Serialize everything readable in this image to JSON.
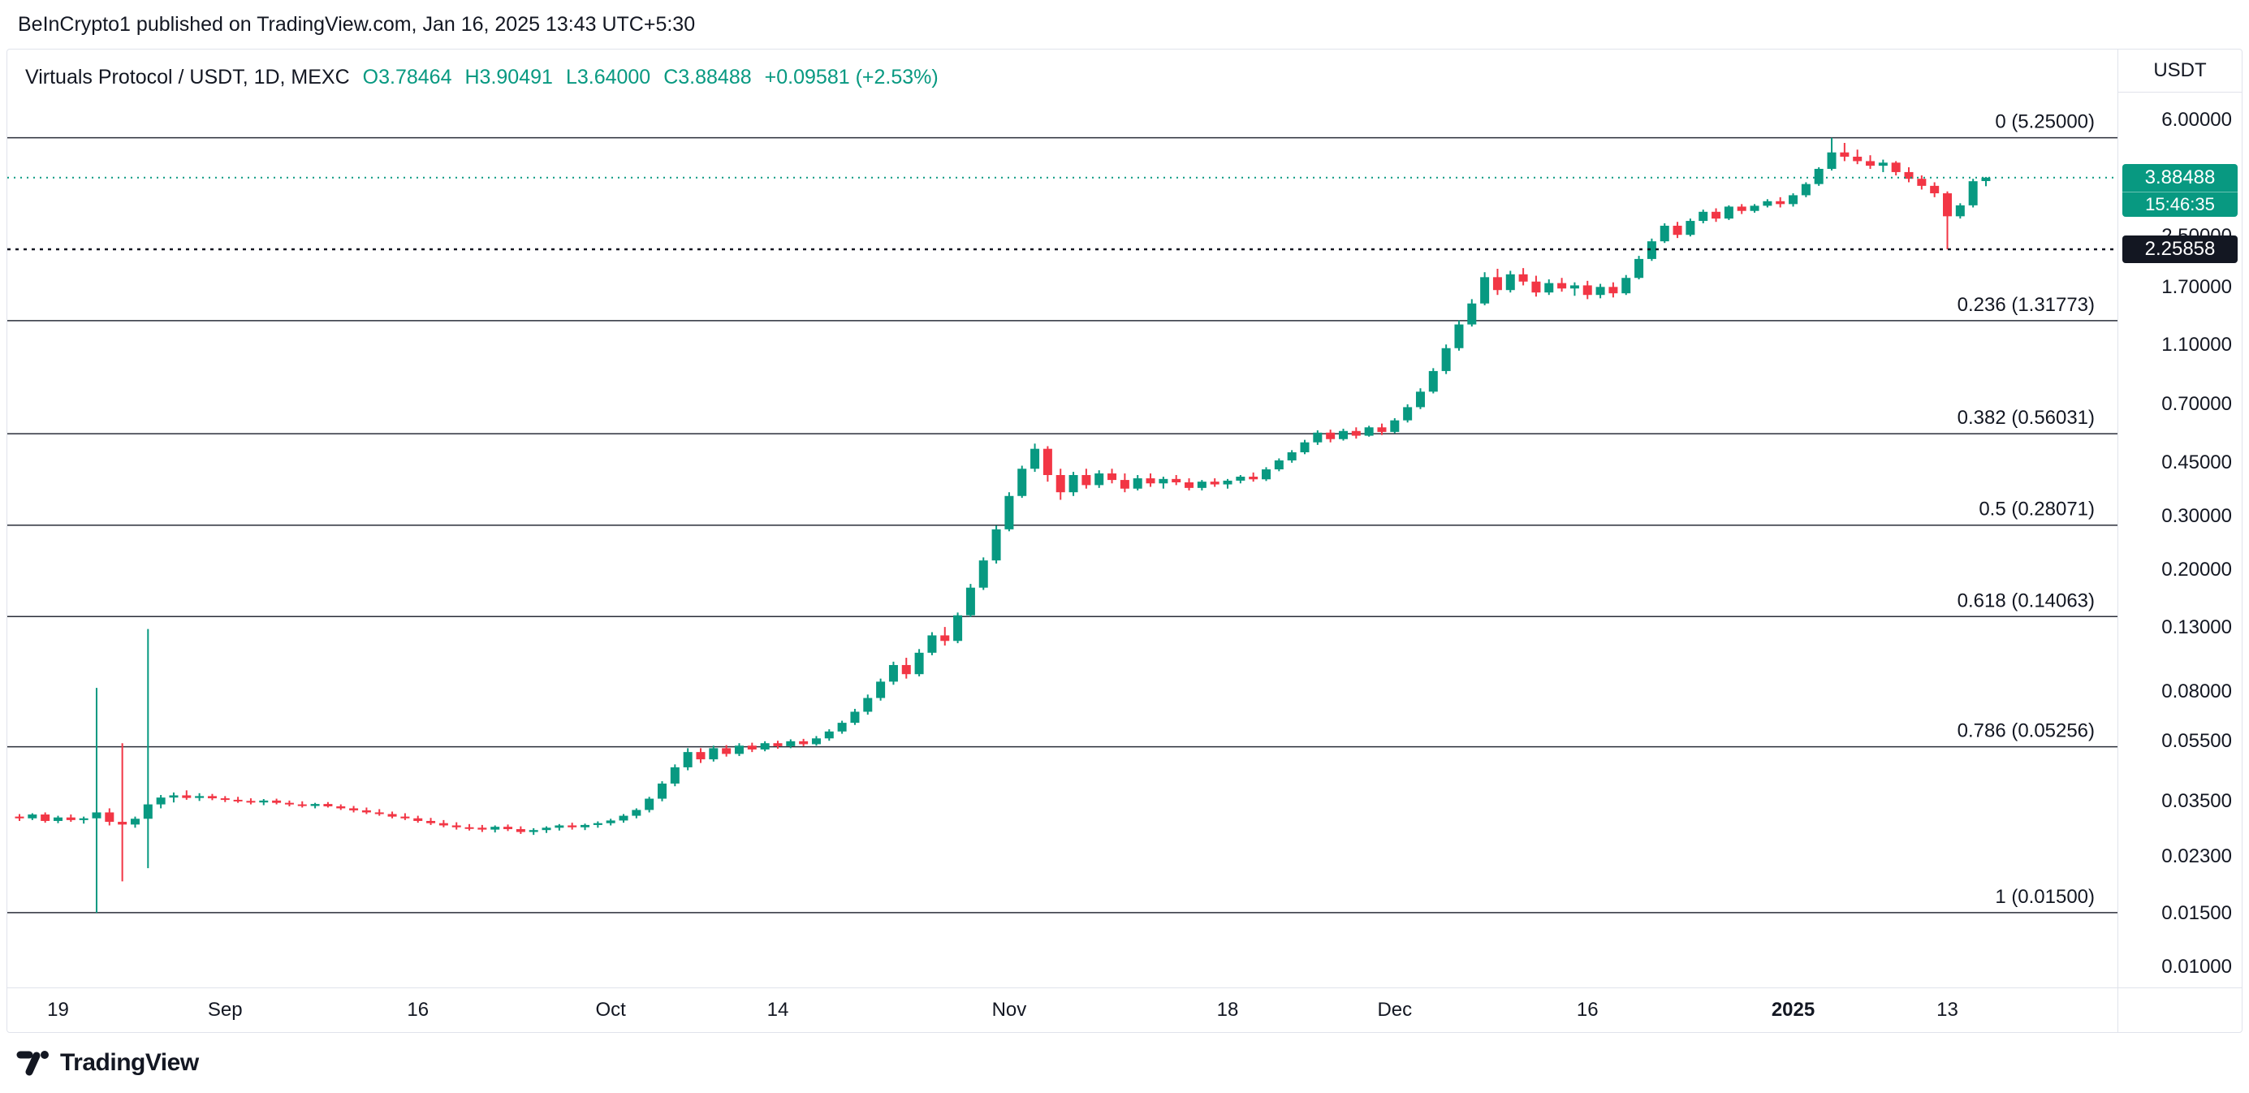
{
  "header": {
    "attribution": "BeInCrypto1 published on TradingView.com, Jan 16, 2025 13:43 UTC+5:30"
  },
  "legend": {
    "symbol": "Virtuals Protocol / USDT, 1D, MEXC",
    "o": "O3.78464",
    "h": "H3.90491",
    "l": "L3.64000",
    "c": "C3.88488",
    "change": "+0.09581 (+2.53%)"
  },
  "price_scale": {
    "currency": "USDT",
    "ticks": [
      {
        "label": "6.00000",
        "price": 6.0
      },
      {
        "label": "2.50000",
        "price": 2.5
      },
      {
        "label": "1.70000",
        "price": 1.7
      },
      {
        "label": "1.10000",
        "price": 1.1
      },
      {
        "label": "0.70000",
        "price": 0.7
      },
      {
        "label": "0.45000",
        "price": 0.45
      },
      {
        "label": "0.30000",
        "price": 0.3
      },
      {
        "label": "0.20000",
        "price": 0.2
      },
      {
        "label": "0.13000",
        "price": 0.13
      },
      {
        "label": "0.08000",
        "price": 0.08
      },
      {
        "label": "0.05500",
        "price": 0.055
      },
      {
        "label": "0.03500",
        "price": 0.035
      },
      {
        "label": "0.02300",
        "price": 0.023
      },
      {
        "label": "0.01500",
        "price": 0.015
      },
      {
        "label": "0.01000",
        "price": 0.01
      }
    ],
    "last_badge": {
      "value": "3.88488",
      "countdown": "15:46:35",
      "color": "#089981"
    },
    "level_badge": {
      "value": "2.25858",
      "color": "#131722"
    }
  },
  "time_scale": {
    "labels": [
      {
        "text": "19",
        "index": 3,
        "bold": false
      },
      {
        "text": "Sep",
        "index": 16,
        "bold": false
      },
      {
        "text": "16",
        "index": 31,
        "bold": false
      },
      {
        "text": "Oct",
        "index": 46,
        "bold": false
      },
      {
        "text": "14",
        "index": 59,
        "bold": false
      },
      {
        "text": "Nov",
        "index": 77,
        "bold": false
      },
      {
        "text": "18",
        "index": 94,
        "bold": false
      },
      {
        "text": "Dec",
        "index": 107,
        "bold": false
      },
      {
        "text": "16",
        "index": 122,
        "bold": false
      },
      {
        "text": "2025",
        "index": 138,
        "bold": true
      },
      {
        "text": "13",
        "index": 150,
        "bold": false
      }
    ]
  },
  "footer": {
    "brand": "TradingView"
  },
  "chart_data": {
    "type": "candlestick",
    "title": "Virtuals Protocol / USDT, 1D, MEXC",
    "interval": "1D",
    "exchange": "MEXC",
    "up_color": "#089981",
    "down_color": "#F23645",
    "y_axis": {
      "scale": "log",
      "range": [
        0.009,
        6.8
      ]
    },
    "last_values": {
      "open": 3.78464,
      "high": 3.90491,
      "low": 3.64,
      "close": 3.88488,
      "change": "+0.09581",
      "change_pct": "+2.53%"
    },
    "fib_levels": [
      {
        "label": "0 (5.25000)",
        "ratio": 0,
        "price": 5.25
      },
      {
        "label": "0.236 (1.31773)",
        "ratio": 0.236,
        "price": 1.31773
      },
      {
        "label": "0.382 (0.56031)",
        "ratio": 0.382,
        "price": 0.56031
      },
      {
        "label": "0.5 (0.28071)",
        "ratio": 0.5,
        "price": 0.28071
      },
      {
        "label": "0.618 (0.14063)",
        "ratio": 0.618,
        "price": 0.14063
      },
      {
        "label": "0.786 (0.05256)",
        "ratio": 0.786,
        "price": 0.05256
      },
      {
        "label": "1 (0.01500)",
        "ratio": 1,
        "price": 0.015
      }
    ],
    "price_lines": [
      {
        "name": "last-price-line",
        "price": 3.88488,
        "color": "#089981",
        "style": "dotted",
        "dash": "2 6",
        "width": 2
      },
      {
        "name": "level-line",
        "price": 2.25858,
        "color": "#131722",
        "style": "dotted",
        "dash": "4 6",
        "width": 2.5
      }
    ],
    "candles": [
      [
        0.031,
        0.0316,
        0.03,
        0.0306
      ],
      [
        0.0306,
        0.0318,
        0.0302,
        0.0315
      ],
      [
        0.0315,
        0.032,
        0.0296,
        0.03
      ],
      [
        0.03,
        0.0312,
        0.0295,
        0.0308
      ],
      [
        0.0308,
        0.0315,
        0.0298,
        0.0302
      ],
      [
        0.0302,
        0.031,
        0.0294,
        0.0306
      ],
      [
        0.0306,
        0.082,
        0.015,
        0.032
      ],
      [
        0.032,
        0.033,
        0.029,
        0.0298
      ],
      [
        0.0298,
        0.054,
        0.019,
        0.0292
      ],
      [
        0.0292,
        0.031,
        0.0285,
        0.0305
      ],
      [
        0.0305,
        0.128,
        0.021,
        0.034
      ],
      [
        0.034,
        0.0365,
        0.033,
        0.0358
      ],
      [
        0.0358,
        0.0372,
        0.0345,
        0.0364
      ],
      [
        0.0364,
        0.0378,
        0.0352,
        0.0357
      ],
      [
        0.0357,
        0.037,
        0.0349,
        0.0362
      ],
      [
        0.0362,
        0.0368,
        0.0351,
        0.0356
      ],
      [
        0.0356,
        0.0362,
        0.0346,
        0.0352
      ],
      [
        0.0352,
        0.036,
        0.0344,
        0.0349
      ],
      [
        0.0349,
        0.0356,
        0.034,
        0.0345
      ],
      [
        0.0345,
        0.0354,
        0.0338,
        0.035
      ],
      [
        0.035,
        0.0355,
        0.034,
        0.0344
      ],
      [
        0.0344,
        0.035,
        0.0335,
        0.034
      ],
      [
        0.034,
        0.0348,
        0.0332,
        0.0336
      ],
      [
        0.0336,
        0.0344,
        0.033,
        0.0341
      ],
      [
        0.0341,
        0.0346,
        0.0332,
        0.0335
      ],
      [
        0.0335,
        0.034,
        0.0326,
        0.033
      ],
      [
        0.033,
        0.0336,
        0.032,
        0.0325
      ],
      [
        0.0325,
        0.0332,
        0.0316,
        0.032
      ],
      [
        0.032,
        0.0328,
        0.0312,
        0.0316
      ],
      [
        0.0316,
        0.0322,
        0.0306,
        0.031
      ],
      [
        0.031,
        0.0318,
        0.0302,
        0.0306
      ],
      [
        0.0306,
        0.0312,
        0.0296,
        0.03
      ],
      [
        0.03,
        0.0307,
        0.0291,
        0.0295
      ],
      [
        0.0295,
        0.0302,
        0.0286,
        0.029
      ],
      [
        0.029,
        0.0297,
        0.0281,
        0.0286
      ],
      [
        0.0286,
        0.0293,
        0.0279,
        0.0285
      ],
      [
        0.0285,
        0.0291,
        0.0276,
        0.0281
      ],
      [
        0.0281,
        0.029,
        0.0275,
        0.0287
      ],
      [
        0.0287,
        0.0292,
        0.0278,
        0.0282
      ],
      [
        0.0282,
        0.0288,
        0.0272,
        0.0276
      ],
      [
        0.0276,
        0.0284,
        0.027,
        0.028
      ],
      [
        0.028,
        0.0288,
        0.0274,
        0.0285
      ],
      [
        0.0285,
        0.0293,
        0.0279,
        0.029
      ],
      [
        0.029,
        0.0296,
        0.0281,
        0.0286
      ],
      [
        0.0286,
        0.0294,
        0.028,
        0.0291
      ],
      [
        0.0291,
        0.0299,
        0.0285,
        0.0295
      ],
      [
        0.0295,
        0.0305,
        0.029,
        0.0301
      ],
      [
        0.0301,
        0.0316,
        0.0296,
        0.0312
      ],
      [
        0.0312,
        0.033,
        0.0306,
        0.0326
      ],
      [
        0.0326,
        0.036,
        0.032,
        0.0355
      ],
      [
        0.0355,
        0.0405,
        0.0348,
        0.0398
      ],
      [
        0.0398,
        0.046,
        0.039,
        0.045
      ],
      [
        0.045,
        0.052,
        0.044,
        0.0505
      ],
      [
        0.0505,
        0.052,
        0.0465,
        0.0478
      ],
      [
        0.0478,
        0.053,
        0.047,
        0.052
      ],
      [
        0.052,
        0.0532,
        0.0488,
        0.0498
      ],
      [
        0.0498,
        0.054,
        0.049,
        0.053
      ],
      [
        0.053,
        0.0542,
        0.0505,
        0.0515
      ],
      [
        0.0515,
        0.0548,
        0.0508,
        0.054
      ],
      [
        0.054,
        0.055,
        0.0518,
        0.0528
      ],
      [
        0.0528,
        0.0556,
        0.052,
        0.0548
      ],
      [
        0.0548,
        0.0558,
        0.0528,
        0.0536
      ],
      [
        0.0536,
        0.057,
        0.053,
        0.056
      ],
      [
        0.056,
        0.06,
        0.055,
        0.059
      ],
      [
        0.059,
        0.064,
        0.058,
        0.063
      ],
      [
        0.063,
        0.07,
        0.062,
        0.0685
      ],
      [
        0.0685,
        0.078,
        0.067,
        0.076
      ],
      [
        0.076,
        0.088,
        0.0745,
        0.086
      ],
      [
        0.086,
        0.1,
        0.084,
        0.0975
      ],
      [
        0.0975,
        0.103,
        0.088,
        0.091
      ],
      [
        0.091,
        0.11,
        0.0895,
        0.107
      ],
      [
        0.107,
        0.125,
        0.105,
        0.122
      ],
      [
        0.122,
        0.13,
        0.113,
        0.117
      ],
      [
        0.117,
        0.145,
        0.115,
        0.142
      ],
      [
        0.142,
        0.18,
        0.14,
        0.175
      ],
      [
        0.175,
        0.22,
        0.172,
        0.215
      ],
      [
        0.215,
        0.28,
        0.21,
        0.272
      ],
      [
        0.272,
        0.36,
        0.268,
        0.35
      ],
      [
        0.35,
        0.44,
        0.345,
        0.43
      ],
      [
        0.43,
        0.52,
        0.42,
        0.5
      ],
      [
        0.5,
        0.51,
        0.39,
        0.41
      ],
      [
        0.41,
        0.43,
        0.34,
        0.36
      ],
      [
        0.36,
        0.42,
        0.35,
        0.41
      ],
      [
        0.41,
        0.43,
        0.37,
        0.38
      ],
      [
        0.38,
        0.425,
        0.372,
        0.415
      ],
      [
        0.415,
        0.43,
        0.385,
        0.395
      ],
      [
        0.395,
        0.415,
        0.36,
        0.37
      ],
      [
        0.37,
        0.41,
        0.365,
        0.4
      ],
      [
        0.4,
        0.415,
        0.375,
        0.385
      ],
      [
        0.385,
        0.405,
        0.37,
        0.398
      ],
      [
        0.398,
        0.41,
        0.38,
        0.388
      ],
      [
        0.388,
        0.4,
        0.365,
        0.372
      ],
      [
        0.372,
        0.395,
        0.365,
        0.39
      ],
      [
        0.39,
        0.4,
        0.375,
        0.382
      ],
      [
        0.382,
        0.398,
        0.37,
        0.393
      ],
      [
        0.393,
        0.41,
        0.385,
        0.405
      ],
      [
        0.405,
        0.418,
        0.39,
        0.397
      ],
      [
        0.397,
        0.435,
        0.392,
        0.428
      ],
      [
        0.428,
        0.465,
        0.422,
        0.458
      ],
      [
        0.458,
        0.495,
        0.45,
        0.487
      ],
      [
        0.487,
        0.535,
        0.48,
        0.525
      ],
      [
        0.525,
        0.575,
        0.515,
        0.565
      ],
      [
        0.565,
        0.578,
        0.525,
        0.538
      ],
      [
        0.538,
        0.582,
        0.532,
        0.572
      ],
      [
        0.572,
        0.588,
        0.54,
        0.552
      ],
      [
        0.552,
        0.595,
        0.548,
        0.588
      ],
      [
        0.588,
        0.605,
        0.555,
        0.568
      ],
      [
        0.568,
        0.63,
        0.562,
        0.62
      ],
      [
        0.62,
        0.7,
        0.61,
        0.685
      ],
      [
        0.685,
        0.79,
        0.675,
        0.77
      ],
      [
        0.77,
        0.92,
        0.76,
        0.9
      ],
      [
        0.9,
        1.1,
        0.88,
        1.07
      ],
      [
        1.07,
        1.32,
        1.05,
        1.28
      ],
      [
        1.28,
        1.55,
        1.26,
        1.5
      ],
      [
        1.5,
        1.9,
        1.48,
        1.83
      ],
      [
        1.83,
        1.95,
        1.6,
        1.66
      ],
      [
        1.66,
        1.92,
        1.63,
        1.87
      ],
      [
        1.87,
        1.96,
        1.72,
        1.77
      ],
      [
        1.77,
        1.85,
        1.58,
        1.63
      ],
      [
        1.63,
        1.8,
        1.6,
        1.75
      ],
      [
        1.75,
        1.82,
        1.64,
        1.68
      ],
      [
        1.68,
        1.76,
        1.59,
        1.72
      ],
      [
        1.72,
        1.78,
        1.55,
        1.6
      ],
      [
        1.6,
        1.74,
        1.56,
        1.7
      ],
      [
        1.7,
        1.76,
        1.57,
        1.62
      ],
      [
        1.62,
        1.86,
        1.6,
        1.82
      ],
      [
        1.82,
        2.15,
        1.8,
        2.1
      ],
      [
        2.1,
        2.45,
        2.07,
        2.4
      ],
      [
        2.4,
        2.75,
        2.37,
        2.7
      ],
      [
        2.7,
        2.78,
        2.46,
        2.52
      ],
      [
        2.52,
        2.85,
        2.49,
        2.8
      ],
      [
        2.8,
        3.05,
        2.75,
        3.0
      ],
      [
        3.0,
        3.08,
        2.78,
        2.85
      ],
      [
        2.85,
        3.15,
        2.82,
        3.12
      ],
      [
        3.12,
        3.18,
        2.95,
        3.02
      ],
      [
        3.02,
        3.18,
        2.98,
        3.14
      ],
      [
        3.14,
        3.3,
        3.1,
        3.25
      ],
      [
        3.25,
        3.35,
        3.1,
        3.18
      ],
      [
        3.18,
        3.45,
        3.12,
        3.4
      ],
      [
        3.4,
        3.75,
        3.35,
        3.7
      ],
      [
        3.7,
        4.2,
        3.65,
        4.15
      ],
      [
        4.15,
        5.25,
        4.1,
        4.7
      ],
      [
        4.7,
        5.05,
        4.4,
        4.55
      ],
      [
        4.55,
        4.8,
        4.3,
        4.4
      ],
      [
        4.4,
        4.6,
        4.15,
        4.25
      ],
      [
        4.25,
        4.45,
        4.05,
        4.35
      ],
      [
        4.35,
        4.4,
        3.95,
        4.05
      ],
      [
        4.05,
        4.2,
        3.75,
        3.85
      ],
      [
        3.85,
        3.95,
        3.55,
        3.65
      ],
      [
        3.65,
        3.75,
        3.35,
        3.45
      ],
      [
        3.45,
        3.5,
        2.2586,
        2.9
      ],
      [
        2.9,
        3.2,
        2.85,
        3.15
      ],
      [
        3.15,
        3.85,
        3.1,
        3.78
      ],
      [
        3.78464,
        3.90491,
        3.64,
        3.88488
      ]
    ]
  }
}
